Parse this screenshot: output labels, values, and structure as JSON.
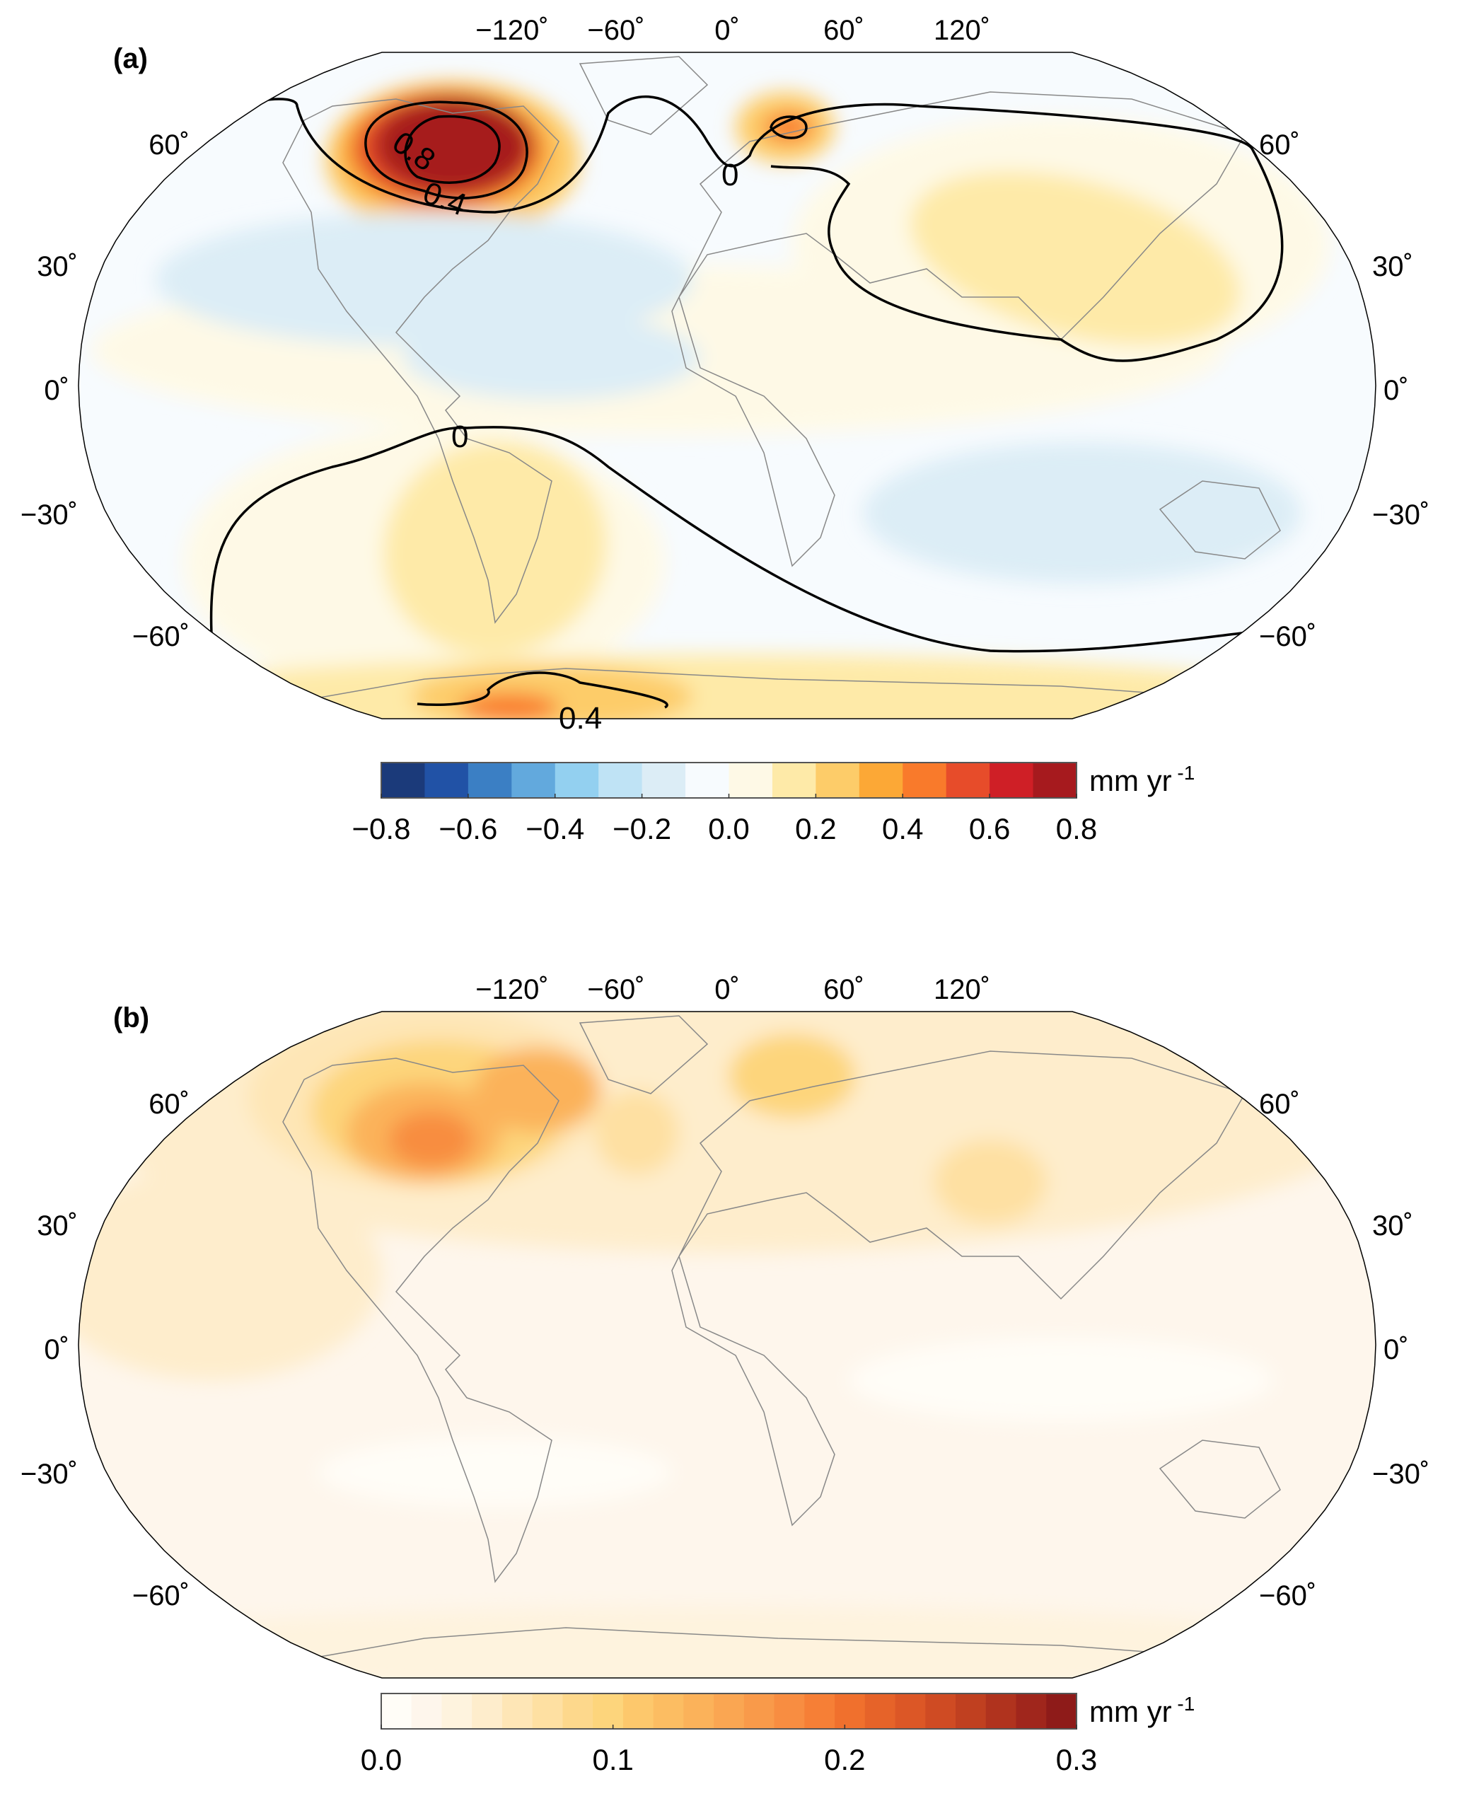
{
  "panels": [
    {
      "label": "(a)",
      "lon_labels": [
        "−120˚",
        "−60˚",
        "0˚",
        "60˚",
        "120˚"
      ],
      "lat_labels": [
        "60˚",
        "30˚",
        "0˚",
        "−30˚",
        "−60˚"
      ],
      "contour_labels": [
        "0",
        "0",
        "0.8",
        "0.4",
        "0.4"
      ],
      "colorbar": {
        "ticks": [
          "−0.8",
          "−0.6",
          "−0.4",
          "−0.2",
          "0.0",
          "0.2",
          "0.4",
          "0.6",
          "0.8"
        ],
        "range": [
          -0.8,
          0.8
        ],
        "unit": "mm yr",
        "unit_exp": "-1",
        "colors": [
          "#1b3a7a",
          "#2152a6",
          "#3b7fc4",
          "#62a9dd",
          "#93d0f0",
          "#bfe3f5",
          "#dcedf6",
          "#f7fbfe",
          "#fef9e6",
          "#feeaa8",
          "#fdcc69",
          "#fca836",
          "#f97a2b",
          "#e74c2a",
          "#cf1f26",
          "#a61a1e"
        ]
      }
    },
    {
      "label": "(b)",
      "lon_labels": [
        "−120˚",
        "−60˚",
        "0˚",
        "60˚",
        "120˚"
      ],
      "lat_labels": [
        "60˚",
        "30˚",
        "0˚",
        "−30˚",
        "−60˚"
      ],
      "colorbar": {
        "ticks": [
          "0.0",
          "0.1",
          "0.2",
          "0.3"
        ],
        "range": [
          0,
          0.3
        ],
        "unit": "mm yr",
        "unit_exp": "-1",
        "colors": [
          "#fffdf7",
          "#fef6ec",
          "#fef3de",
          "#feedcc",
          "#fee6b6",
          "#fee0a2",
          "#fdd88c",
          "#fdd57c",
          "#fdc86c",
          "#fcbd62",
          "#fbb25a",
          "#faa652",
          "#f99a4a",
          "#f88d41",
          "#f67f36",
          "#f0702d",
          "#e66329",
          "#dc5726",
          "#cf4b23",
          "#c04020",
          "#b0331e",
          "#a0261c",
          "#8e1b19"
        ]
      }
    }
  ]
}
